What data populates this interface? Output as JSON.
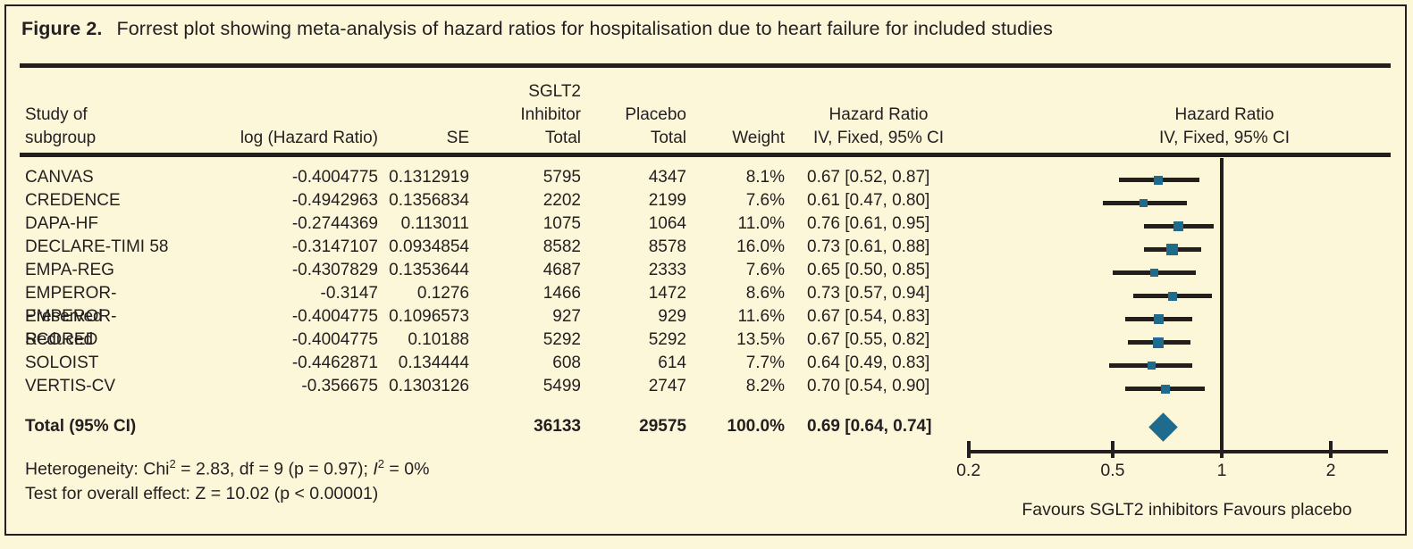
{
  "figure": {
    "label": "Figure 2.",
    "title": "Forrest plot showing meta-analysis of hazard ratios for hospitalisation due to heart failure for included studies"
  },
  "table": {
    "headers": {
      "study": "Study of\nsubgroup",
      "log_hr": "log (Hazard Ratio)",
      "se": "SE",
      "sglt2_total": "SGLT2\nInhibitor\nTotal",
      "placebo_total": "Placebo\nTotal",
      "weight": "Weight",
      "hr_ci": "Hazard Ratio\nIV, Fixed, 95% CI",
      "plot_hr_ci": "Hazard Ratio\nIV, Fixed, 95% CI"
    },
    "rows": [
      {
        "study": "CANVAS",
        "log_hr": "-0.4004775",
        "se": "0.1312919",
        "sglt2_total": "5795",
        "placebo_total": "4347",
        "weight": "8.1%",
        "hr_ci": "0.67 [0.52, 0.87]"
      },
      {
        "study": "CREDENCE",
        "log_hr": "-0.4942963",
        "se": "0.1356834",
        "sglt2_total": "2202",
        "placebo_total": "2199",
        "weight": "7.6%",
        "hr_ci": "0.61 [0.47, 0.80]"
      },
      {
        "study": "DAPA-HF",
        "log_hr": "-0.2744369",
        "se": "0.113011",
        "sglt2_total": "1075",
        "placebo_total": "1064",
        "weight": "11.0%",
        "hr_ci": "0.76 [0.61, 0.95]"
      },
      {
        "study": "DECLARE-TIMI 58",
        "log_hr": "-0.3147107",
        "se": "0.0934854",
        "sglt2_total": "8582",
        "placebo_total": "8578",
        "weight": "16.0%",
        "hr_ci": "0.73 [0.61, 0.88]"
      },
      {
        "study": "EMPA-REG",
        "log_hr": "-0.4307829",
        "se": "0.1353644",
        "sglt2_total": "4687",
        "placebo_total": "2333",
        "weight": "7.6%",
        "hr_ci": "0.65 [0.50, 0.85]"
      },
      {
        "study": "EMPEROR-Preserved",
        "log_hr": "-0.3147",
        "se": "0.1276",
        "sglt2_total": "1466",
        "placebo_total": "1472",
        "weight": "8.6%",
        "hr_ci": "0.73 [0.57, 0.94]"
      },
      {
        "study": "EMPEROR-Reduced",
        "log_hr": "-0.4004775",
        "se": "0.1096573",
        "sglt2_total": "927",
        "placebo_total": "929",
        "weight": "11.6%",
        "hr_ci": "0.67 [0.54, 0.83]"
      },
      {
        "study": "SCORED",
        "log_hr": "-0.4004775",
        "se": "0.10188",
        "sglt2_total": "5292",
        "placebo_total": "5292",
        "weight": "13.5%",
        "hr_ci": "0.67 [0.55, 0.82]"
      },
      {
        "study": "SOLOIST",
        "log_hr": "-0.4462871",
        "se": "0.134444",
        "sglt2_total": "608",
        "placebo_total": "614",
        "weight": "7.7%",
        "hr_ci": "0.64 [0.49, 0.83]"
      },
      {
        "study": "VERTIS-CV",
        "log_hr": "-0.356675",
        "se": "0.1303126",
        "sglt2_total": "5499",
        "placebo_total": "2747",
        "weight": "8.2%",
        "hr_ci": "0.70 [0.54, 0.90]"
      }
    ],
    "total": {
      "label": "Total (95% CI)",
      "sglt2_total": "36133",
      "placebo_total": "29575",
      "weight": "100.0%",
      "hr_ci": "0.69 [0.64, 0.74]"
    }
  },
  "stats": {
    "het_pre": "Heterogeneity: Chi",
    "het_sup1": "2",
    "het_mid": " = 2.83, df = 9 (p = 0.97); ",
    "het_i": "I",
    "het_sup2": "2",
    "het_post": " = 0%",
    "test": "Test for overall effect: Z = 10.02 (p < 0.00001)"
  },
  "axis": {
    "favours": "Favours SGLT2 inhibitors Favours placebo"
  },
  "chart_data": {
    "type": "forest",
    "scale": "log",
    "title": "Forrest plot showing meta-analysis of hazard ratios for hospitalisation due to heart failure for included studies",
    "effect_measure": "Hazard Ratio, IV, Fixed, 95% CI",
    "axis_ticks": [
      0.2,
      0.5,
      1,
      2
    ],
    "tick_labels": [
      "0.2",
      "0.5",
      "1",
      "2"
    ],
    "reference_line": 1,
    "xlim": [
      0.2,
      2.9
    ],
    "footer_label": "Favours SGLT2 inhibitors Favours placebo",
    "studies": [
      {
        "name": "CANVAS",
        "hr": 0.67,
        "lo": 0.52,
        "hi": 0.87,
        "weight_pct": 8.1
      },
      {
        "name": "CREDENCE",
        "hr": 0.61,
        "lo": 0.47,
        "hi": 0.8,
        "weight_pct": 7.6
      },
      {
        "name": "DAPA-HF",
        "hr": 0.76,
        "lo": 0.61,
        "hi": 0.95,
        "weight_pct": 11.0
      },
      {
        "name": "DECLARE-TIMI 58",
        "hr": 0.73,
        "lo": 0.61,
        "hi": 0.88,
        "weight_pct": 16.0
      },
      {
        "name": "EMPA-REG",
        "hr": 0.65,
        "lo": 0.5,
        "hi": 0.85,
        "weight_pct": 7.6
      },
      {
        "name": "EMPEROR-Preserved",
        "hr": 0.73,
        "lo": 0.57,
        "hi": 0.94,
        "weight_pct": 8.6
      },
      {
        "name": "EMPEROR-Reduced",
        "hr": 0.67,
        "lo": 0.54,
        "hi": 0.83,
        "weight_pct": 11.6
      },
      {
        "name": "SCORED",
        "hr": 0.67,
        "lo": 0.55,
        "hi": 0.82,
        "weight_pct": 13.5
      },
      {
        "name": "SOLOIST",
        "hr": 0.64,
        "lo": 0.49,
        "hi": 0.83,
        "weight_pct": 7.7
      },
      {
        "name": "VERTIS-CV",
        "hr": 0.7,
        "lo": 0.54,
        "hi": 0.9,
        "weight_pct": 8.2
      }
    ],
    "total": {
      "name": "Total (95% CI)",
      "hr": 0.69,
      "lo": 0.64,
      "hi": 0.74,
      "weight_pct": 100.0
    },
    "heterogeneity": {
      "chi2": 2.83,
      "df": 9,
      "p": 0.97,
      "i2_pct": 0
    },
    "overall_effect": {
      "z": 10.02,
      "p": "< 0.00001"
    }
  },
  "colors": {
    "background": "#fcf7d9",
    "ink": "#231f20",
    "marker": "#1f6b8d"
  }
}
